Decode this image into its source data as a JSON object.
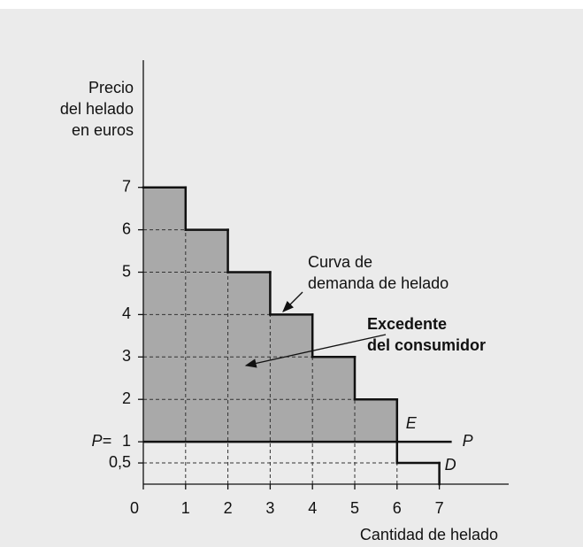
{
  "chart_data": {
    "type": "step",
    "y_label": [
      "Precio",
      "del helado",
      "en euros"
    ],
    "x_label": "Cantidad de helado",
    "values": [
      7,
      6,
      5,
      4,
      3,
      2,
      0.5
    ],
    "price": 1,
    "price_prefix": "P=",
    "price_label": "P",
    "demand_label": "D",
    "equilibrium_label": "E",
    "annotations": {
      "demand": [
        "Curva de",
        "demanda de helado"
      ],
      "surplus": [
        "Excedente",
        "del consumidor"
      ]
    },
    "xlim": [
      0,
      8.64
    ],
    "ylim": [
      0,
      10
    ],
    "xticks": [
      0,
      1,
      2,
      3,
      4,
      5,
      6,
      7
    ],
    "yticks": [
      {
        "value": 0.5,
        "label": "0,5"
      },
      1,
      2,
      3,
      4,
      5,
      6,
      7
    ],
    "fill_color": "#a9a9a9",
    "line_color": "#111111"
  }
}
